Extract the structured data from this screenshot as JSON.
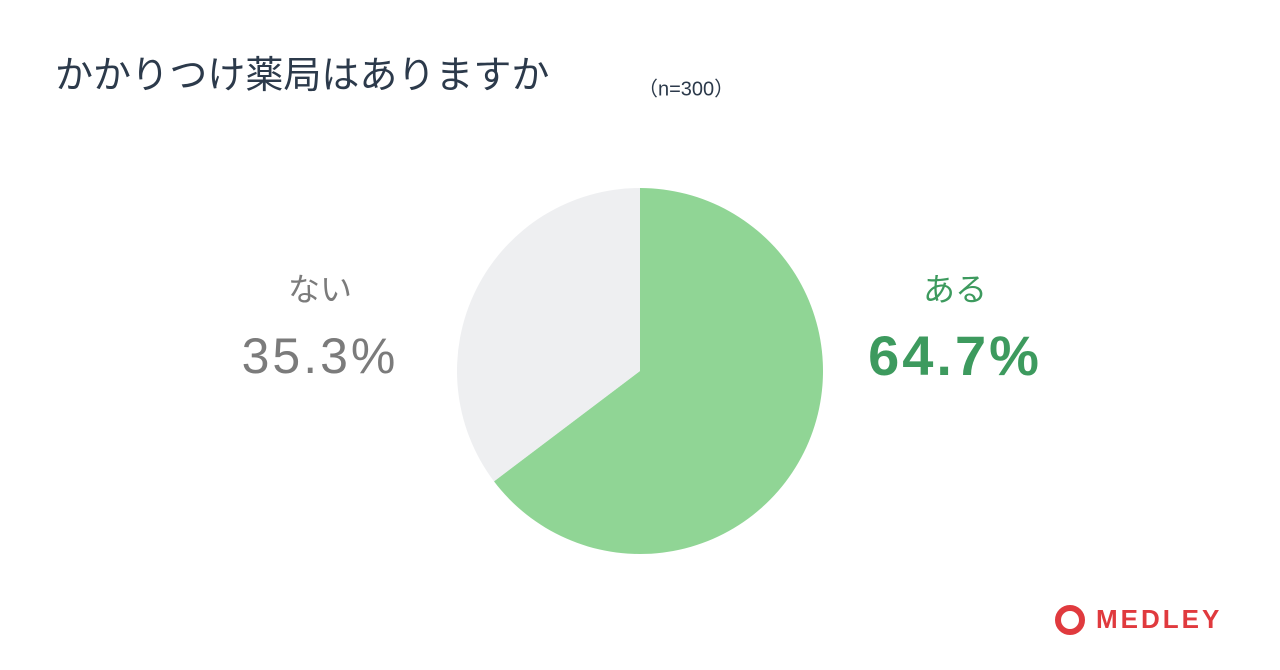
{
  "chart_data": {
    "type": "pie",
    "title": "かかりつけ薬局はありますか",
    "subtitle": "（n=300）",
    "categories": [
      "ある",
      "ない"
    ],
    "values": [
      64.7,
      35.3
    ],
    "value_labels": [
      "64.7%",
      "35.3%"
    ],
    "colors": [
      "#90d595",
      "#eeeff1"
    ]
  },
  "logo": "MEDLEY"
}
